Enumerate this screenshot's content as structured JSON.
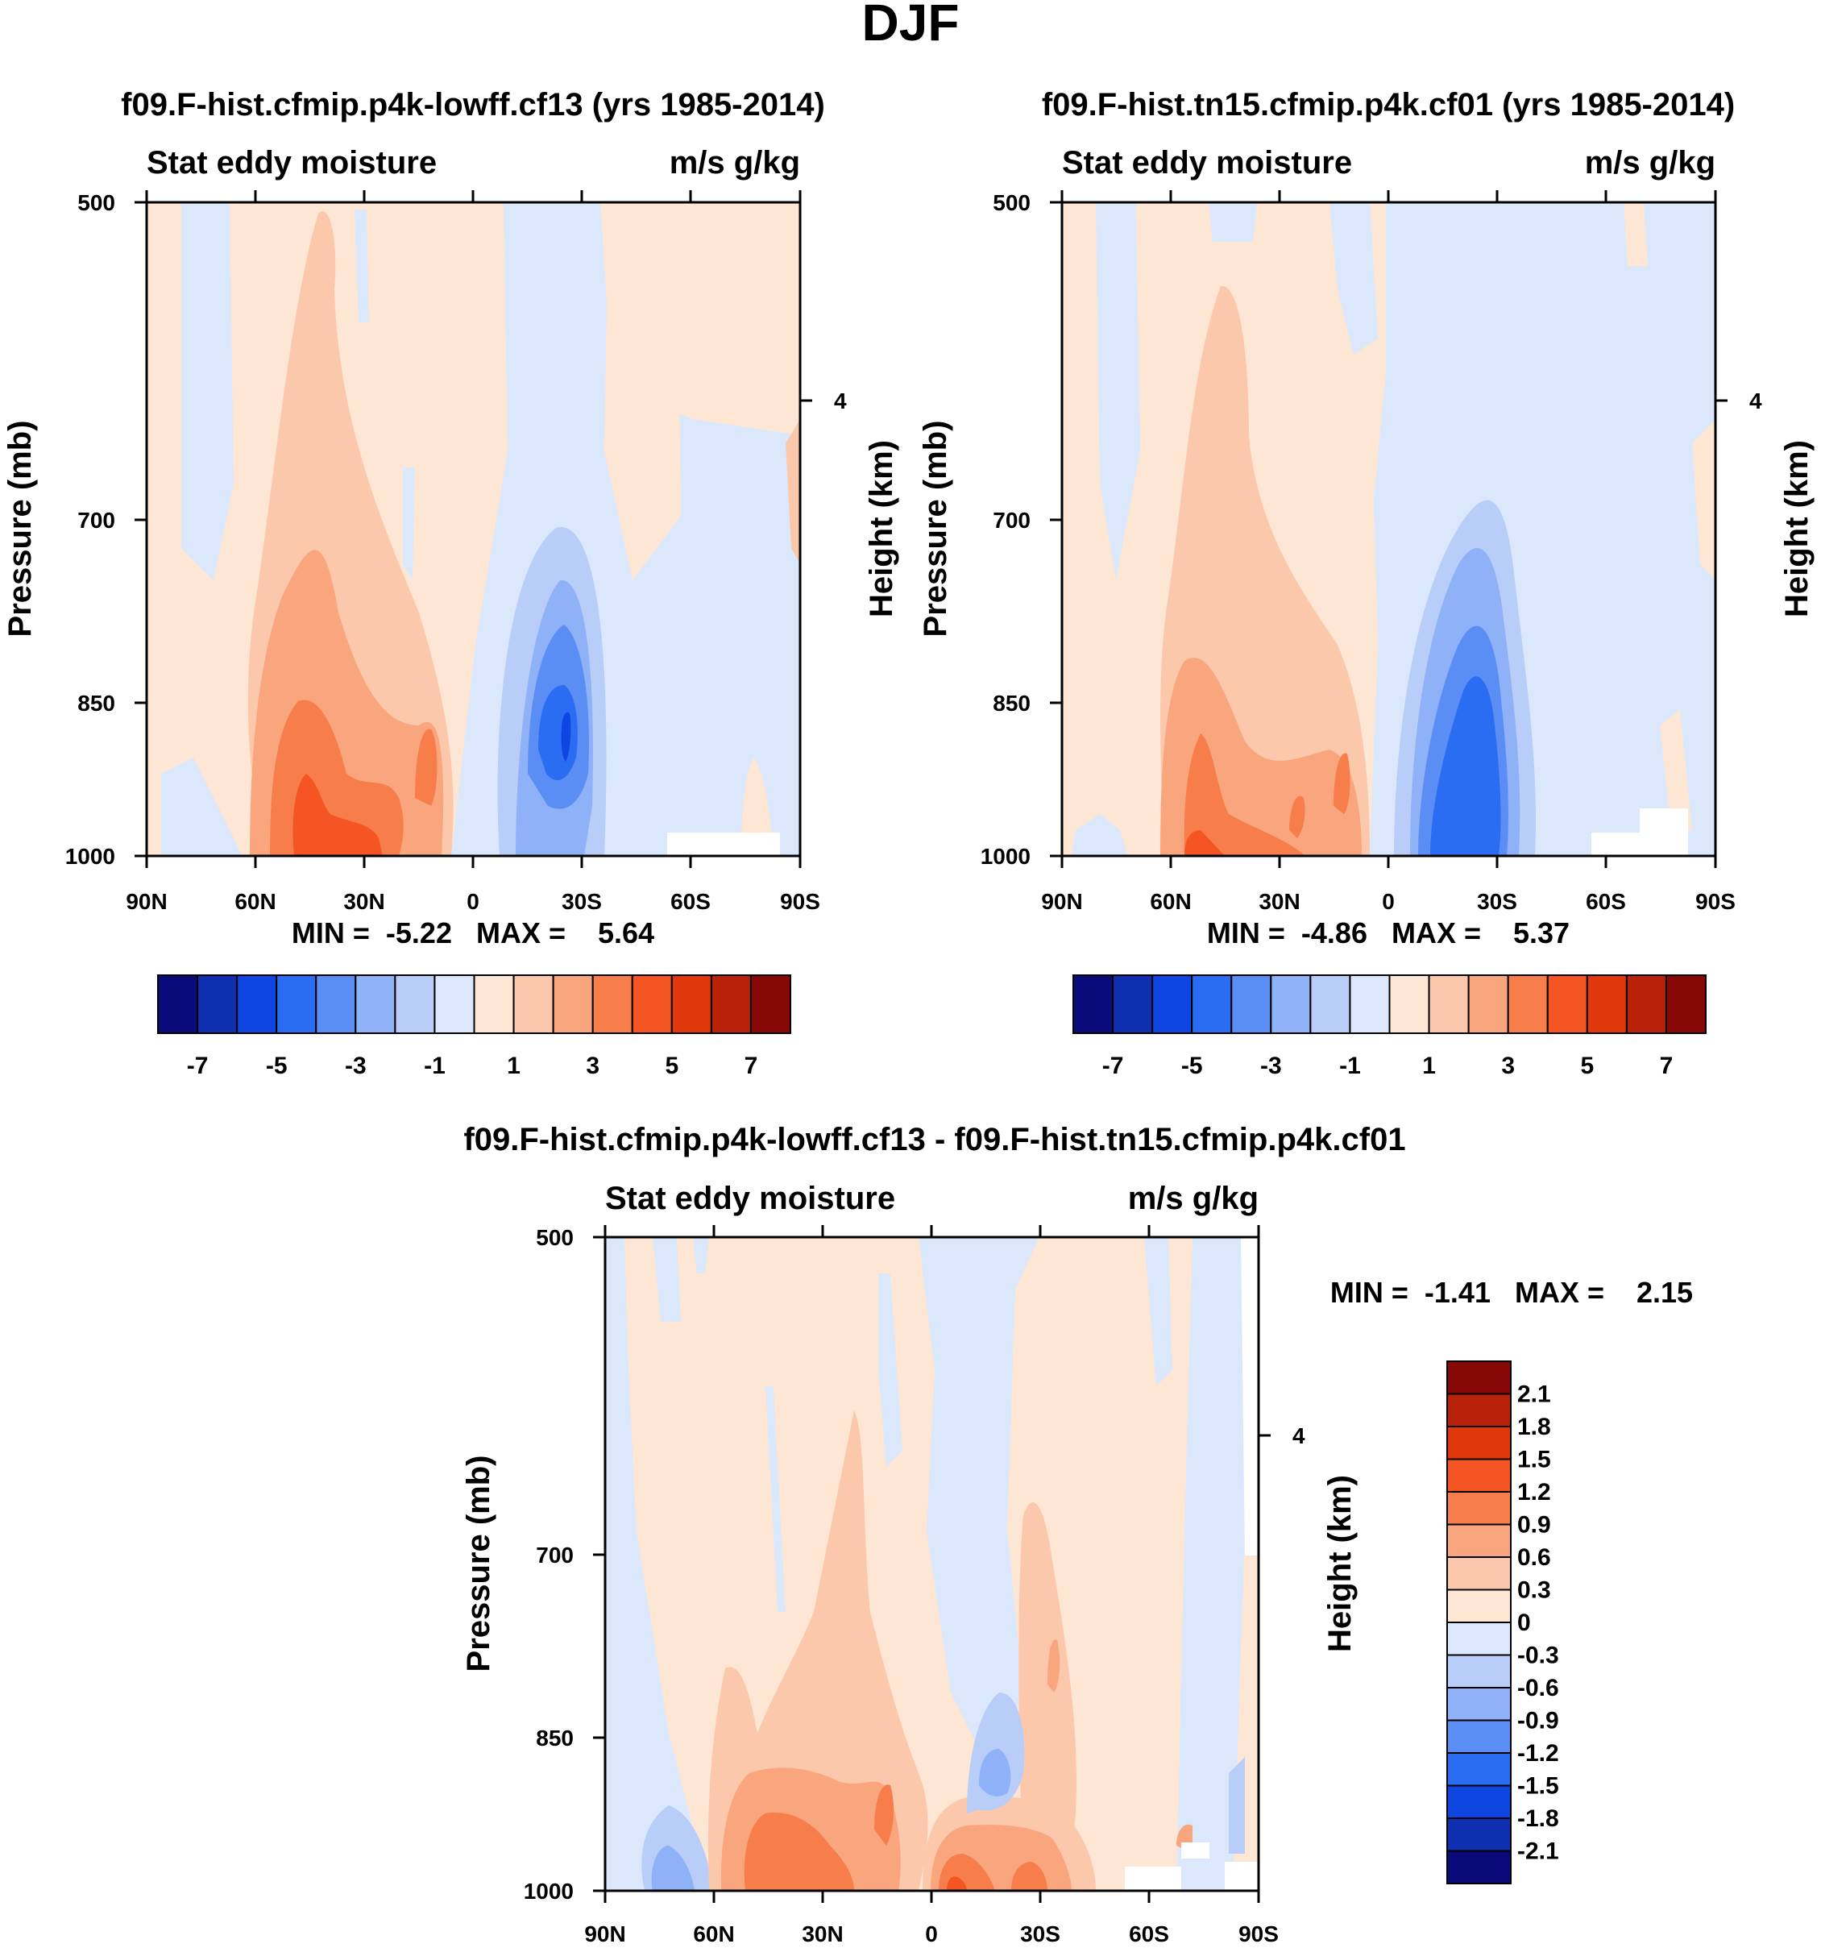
{
  "figure_title": "DJF",
  "palette": [
    "#0a0a7a",
    "#0d2fb0",
    "#0f45e0",
    "#2a6cf2",
    "#5b8ef5",
    "#8fb1f7",
    "#b9cdf9",
    "#dbe8fc",
    "#fde6d4",
    "#fbc8ac",
    "#f9a67e",
    "#f77e4b",
    "#f45522",
    "#e0380b",
    "#b8220a",
    "#880808"
  ],
  "colorbar_main": {
    "labels": [
      "-7",
      "-5",
      "-3",
      "-1",
      "1",
      "3",
      "5",
      "7"
    ]
  },
  "colorbar_diff": {
    "labels": [
      "2.1",
      "1.8",
      "1.5",
      "1.2",
      "0.9",
      "0.6",
      "0.3",
      "0",
      "-0.3",
      "-0.6",
      "-0.9",
      "-1.2",
      "-1.5",
      "-1.8",
      "-2.1"
    ]
  },
  "chart_data": [
    {
      "type": "heatmap",
      "title": "f09.F-hist.cfmip.p4k-lowff.cf13 (yrs 1985-2014)",
      "left_label": "Stat eddy moisture",
      "right_label": "m/s g/kg",
      "ylabel": "Pressure (mb)",
      "ylabel_right": "Height (km)",
      "x_ticks": [
        "90N",
        "60N",
        "30N",
        "0",
        "30S",
        "60S",
        "90S"
      ],
      "y_ticks": [
        "500",
        "700",
        "850",
        "1000"
      ],
      "y_right_ticks": [
        "4"
      ],
      "stats": "MIN =  -5.22   MAX =    5.64",
      "min": -5.22,
      "max": 5.64
    },
    {
      "type": "heatmap",
      "title": "f09.F-hist.tn15.cfmip.p4k.cf01 (yrs 1985-2014)",
      "left_label": "Stat eddy moisture",
      "right_label": "m/s g/kg",
      "ylabel": "Pressure (mb)",
      "ylabel_right": "Height (km)",
      "x_ticks": [
        "90N",
        "60N",
        "30N",
        "0",
        "30S",
        "60S",
        "90S"
      ],
      "y_ticks": [
        "500",
        "700",
        "850",
        "1000"
      ],
      "y_right_ticks": [
        "4"
      ],
      "stats": "MIN =  -4.86   MAX =    5.37",
      "min": -4.86,
      "max": 5.37
    },
    {
      "type": "heatmap",
      "title": "f09.F-hist.cfmip.p4k-lowff.cf13 - f09.F-hist.tn15.cfmip.p4k.cf01",
      "left_label": "Stat eddy moisture",
      "right_label": "m/s g/kg",
      "ylabel": "Pressure (mb)",
      "ylabel_right": "Height (km)",
      "x_ticks": [
        "90N",
        "60N",
        "30N",
        "0",
        "30S",
        "60S",
        "90S"
      ],
      "y_ticks": [
        "500",
        "700",
        "850",
        "1000"
      ],
      "y_right_ticks": [
        "4"
      ],
      "stats": "MIN =  -1.41   MAX =    2.15",
      "min": -1.41,
      "max": 2.15
    }
  ]
}
